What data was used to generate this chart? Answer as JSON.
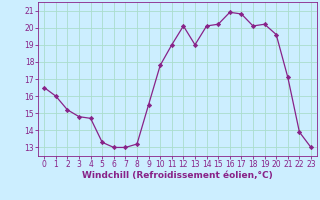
{
  "x": [
    0,
    1,
    2,
    3,
    4,
    5,
    6,
    7,
    8,
    9,
    10,
    11,
    12,
    13,
    14,
    15,
    16,
    17,
    18,
    19,
    20,
    21,
    22,
    23
  ],
  "y": [
    16.5,
    16.0,
    15.2,
    14.8,
    14.7,
    13.3,
    13.0,
    13.0,
    13.2,
    15.5,
    17.8,
    19.0,
    20.1,
    19.0,
    20.1,
    20.2,
    20.9,
    20.8,
    20.1,
    20.2,
    19.6,
    17.1,
    13.9,
    13.0
  ],
  "line_color": "#882288",
  "marker": "D",
  "marker_size": 2.2,
  "background_color": "#cceeff",
  "grid_color": "#aaddcc",
  "xlabel": "Windchill (Refroidissement éolien,°C)",
  "xlabel_color": "#882288",
  "xlabel_fontsize": 6.5,
  "tick_color": "#882288",
  "tick_fontsize": 5.5,
  "ylim": [
    12.5,
    21.5
  ],
  "xlim": [
    -0.5,
    23.5
  ],
  "yticks": [
    13,
    14,
    15,
    16,
    17,
    18,
    19,
    20,
    21
  ],
  "xticks": [
    0,
    1,
    2,
    3,
    4,
    5,
    6,
    7,
    8,
    9,
    10,
    11,
    12,
    13,
    14,
    15,
    16,
    17,
    18,
    19,
    20,
    21,
    22,
    23
  ]
}
